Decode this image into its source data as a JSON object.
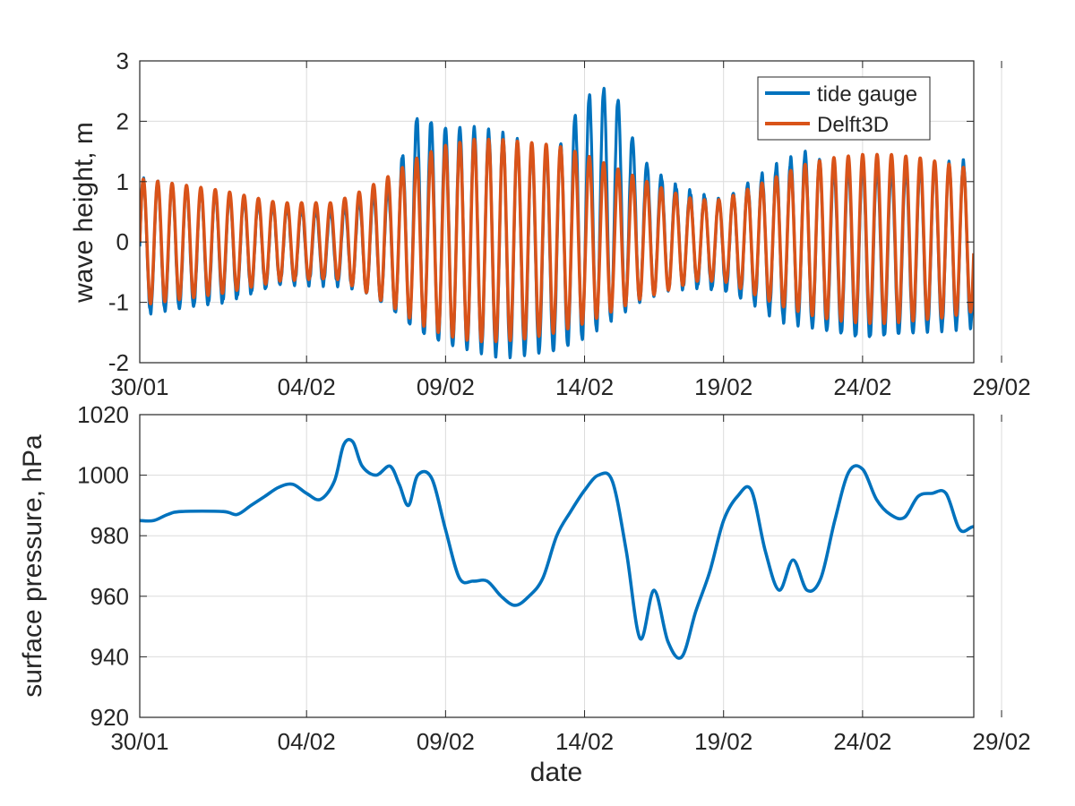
{
  "chart_data": [
    {
      "type": "line",
      "title": "",
      "xlabel": "",
      "ylabel": "wave height, m",
      "xlim": [
        "30/01",
        "29/02"
      ],
      "ylim": [
        -2,
        3
      ],
      "xticks": [
        "30/01",
        "04/02",
        "09/02",
        "14/02",
        "19/02",
        "24/02",
        "29/02"
      ],
      "yticks": [
        "-2",
        "-1",
        "0",
        "1",
        "2",
        "3"
      ],
      "grid": true,
      "legend": "top-right",
      "colors": {
        "tide_gauge": "#0072bd",
        "delft3d": "#d95319"
      },
      "series": [
        {
          "name": "tide gauge",
          "note_form": "semi-diurnal oscillation; values are daily high / low peaks",
          "envelope_x": [
            "30/01",
            "01/02",
            "03/02",
            "05/02",
            "06/02",
            "07/02",
            "08/02",
            "09/02",
            "10/02",
            "11/02",
            "12/02",
            "13/02",
            "14/02",
            "15/02",
            "16/02",
            "17/02",
            "18/02",
            "19/02",
            "20/02",
            "21/02",
            "22/02",
            "23/02",
            "24/02",
            "25/02",
            "26/02",
            "27/02",
            "28/02",
            "29/02"
          ],
          "high": [
            1.05,
            0.8,
            0.6,
            0.5,
            0.7,
            0.9,
            2.1,
            1.9,
            1.9,
            1.8,
            1.6,
            1.5,
            2.4,
            2.6,
            1.4,
            1.0,
            0.8,
            0.7,
            1.0,
            1.3,
            1.5,
            1.2,
            1.3,
            1.2,
            1.25,
            1.3,
            1.35,
            1.2
          ],
          "low": [
            -1.2,
            -1.0,
            -0.7,
            -0.7,
            -0.8,
            -1.1,
            -1.5,
            -1.7,
            -1.8,
            -1.9,
            -1.85,
            -1.8,
            -1.6,
            -1.3,
            -1.0,
            -0.8,
            -0.75,
            -0.8,
            -1.0,
            -1.3,
            -1.4,
            -1.5,
            -1.6,
            -1.55,
            -1.5,
            -1.45,
            -1.4,
            -1.2
          ]
        },
        {
          "name": "Delft3D",
          "note_form": "semi-diurnal oscillation; values are daily high / low peaks",
          "envelope_x": [
            "30/01",
            "01/02",
            "03/02",
            "05/02",
            "06/02",
            "07/02",
            "08/02",
            "09/02",
            "10/02",
            "11/02",
            "12/02",
            "13/02",
            "14/02",
            "15/02",
            "16/02",
            "17/02",
            "18/02",
            "19/02",
            "20/02",
            "21/02",
            "22/02",
            "23/02",
            "24/02",
            "25/02",
            "26/02",
            "27/02",
            "28/02",
            "29/02"
          ],
          "high": [
            1.05,
            0.85,
            0.65,
            0.65,
            0.85,
            1.1,
            1.4,
            1.6,
            1.7,
            1.7,
            1.65,
            1.6,
            1.45,
            1.25,
            1.05,
            0.85,
            0.7,
            0.7,
            0.9,
            1.1,
            1.3,
            1.4,
            1.45,
            1.45,
            1.4,
            1.3,
            1.2,
            1.05
          ],
          "low": [
            -1.05,
            -0.85,
            -0.65,
            -0.6,
            -0.8,
            -1.05,
            -1.35,
            -1.55,
            -1.65,
            -1.65,
            -1.6,
            -1.5,
            -1.35,
            -1.15,
            -0.95,
            -0.8,
            -0.65,
            -0.65,
            -0.85,
            -1.05,
            -1.2,
            -1.3,
            -1.35,
            -1.35,
            -1.3,
            -1.25,
            -1.15,
            -1.0
          ]
        }
      ]
    },
    {
      "type": "line",
      "title": "",
      "xlabel": "date",
      "ylabel": "surface pressure, hPa",
      "xlim": [
        "30/01",
        "29/02"
      ],
      "ylim": [
        920,
        1020
      ],
      "xticks": [
        "30/01",
        "04/02",
        "09/02",
        "14/02",
        "19/02",
        "24/02",
        "29/02"
      ],
      "yticks": [
        "920",
        "940",
        "960",
        "980",
        "1000",
        "1020"
      ],
      "grid": true,
      "colors": {
        "pressure": "#0072bd"
      },
      "series": [
        {
          "name": "",
          "x_days_label": "day offset from 30/01 matching tick dates",
          "points": [
            [
              "30/01",
              985
            ],
            [
              "30/01 12h",
              985
            ],
            [
              "31/01",
              987
            ],
            [
              "31/01 12h",
              988
            ],
            [
              "01/02",
              988
            ],
            [
              "01/02 12h",
              987
            ],
            [
              "02/02",
              990
            ],
            [
              "02/02 12h",
              993
            ],
            [
              "03/02",
              996
            ],
            [
              "03/02 12h",
              997
            ],
            [
              "04/02",
              994
            ],
            [
              "04/02 12h",
              992
            ],
            [
              "05/02",
              998
            ],
            [
              "05/02 8h",
              1010
            ],
            [
              "05/02 16h",
              1011
            ],
            [
              "06/02",
              1003
            ],
            [
              "06/02 12h",
              1000
            ],
            [
              "07/02",
              1003
            ],
            [
              "07/02 8h",
              997
            ],
            [
              "07/02 16h",
              990
            ],
            [
              "08/02",
              1000
            ],
            [
              "08/02 12h",
              999
            ],
            [
              "09/02",
              982
            ],
            [
              "09/02 12h",
              966
            ],
            [
              "10/02",
              965
            ],
            [
              "10/02 12h",
              965
            ],
            [
              "11/02",
              960
            ],
            [
              "11/02 12h",
              957
            ],
            [
              "12/02",
              960
            ],
            [
              "12/02 12h",
              966
            ],
            [
              "13/02",
              980
            ],
            [
              "13/02 12h",
              988
            ],
            [
              "14/02",
              995
            ],
            [
              "14/02 12h",
              1000
            ],
            [
              "15/02",
              998
            ],
            [
              "15/02 12h",
              975
            ],
            [
              "16/02",
              946
            ],
            [
              "16/02 12h",
              962
            ],
            [
              "17/02",
              945
            ],
            [
              "17/02 12h",
              940
            ],
            [
              "18/02",
              955
            ],
            [
              "18/02 12h",
              968
            ],
            [
              "19/02",
              985
            ],
            [
              "19/02 12h",
              993
            ],
            [
              "20/02",
              995
            ],
            [
              "20/02 12h",
              975
            ],
            [
              "21/02",
              962
            ],
            [
              "21/02 12h",
              972
            ],
            [
              "22/02",
              962
            ],
            [
              "22/02 12h",
              966
            ],
            [
              "23/02",
              985
            ],
            [
              "23/02 12h",
              1001
            ],
            [
              "24/02",
              1002
            ],
            [
              "24/02 12h",
              992
            ],
            [
              "25/02",
              987
            ],
            [
              "25/02 12h",
              986
            ],
            [
              "26/02",
              993
            ],
            [
              "26/02 12h",
              994
            ],
            [
              "27/02",
              994
            ],
            [
              "27/02 12h",
              982
            ],
            [
              "28/02",
              983
            ],
            [
              "28/02 12h",
              981
            ],
            [
              "29/02",
              982
            ]
          ]
        }
      ]
    }
  ]
}
